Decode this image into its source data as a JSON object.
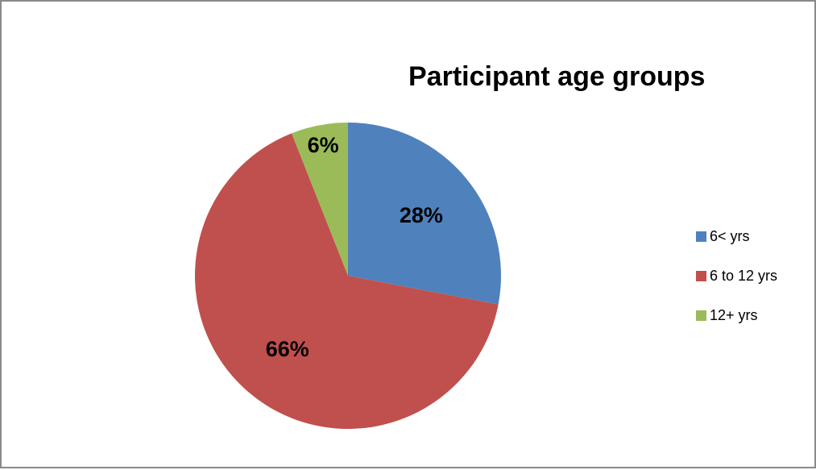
{
  "chart_data": {
    "type": "pie",
    "title": "Participant age groups",
    "categories": [
      "6< yrs",
      "6 to 12 yrs",
      "12+ yrs"
    ],
    "values": [
      28,
      66,
      6
    ],
    "data_labels": [
      "28%",
      "66%",
      "6%"
    ],
    "colors": [
      "#4f81bd",
      "#c0504d",
      "#9bbb59"
    ],
    "legend_position": "right"
  }
}
